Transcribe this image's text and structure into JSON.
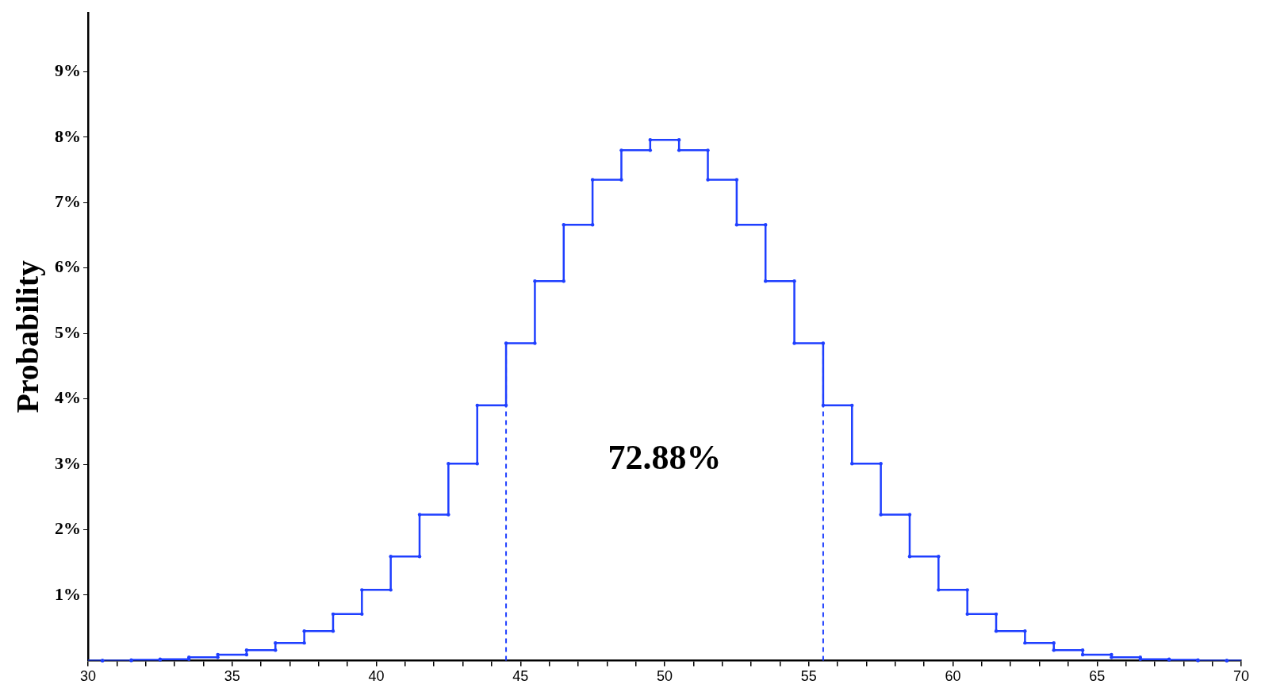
{
  "chart_data": {
    "type": "step",
    "ylabel": "Probability",
    "x": [
      30,
      31,
      32,
      33,
      34,
      35,
      36,
      37,
      38,
      39,
      40,
      41,
      42,
      43,
      44,
      45,
      46,
      47,
      48,
      49,
      50,
      51,
      52,
      53,
      54,
      55,
      56,
      57,
      58,
      59,
      60,
      61,
      62,
      63,
      64,
      65,
      66,
      67,
      68,
      69,
      70
    ],
    "series": [
      {
        "color": "#1f3fff",
        "values": [
          0.0,
          0.0,
          0.01,
          0.02,
          0.05,
          0.09,
          0.16,
          0.27,
          0.45,
          0.71,
          1.08,
          1.59,
          2.23,
          3.01,
          3.9,
          4.85,
          5.8,
          6.66,
          7.35,
          7.8,
          7.96,
          7.8,
          7.35,
          6.66,
          5.8,
          4.85,
          3.9,
          3.01,
          2.23,
          1.59,
          1.08,
          0.71,
          0.45,
          0.27,
          0.16,
          0.09,
          0.05,
          0.02,
          0.01,
          0.0,
          0.0
        ]
      }
    ],
    "xlim": [
      30,
      70
    ],
    "xticks": [
      30,
      {
        "value": 31,
        "label": null
      },
      {
        "value": 32,
        "label": null
      },
      {
        "value": 33,
        "label": null
      },
      {
        "value": 34,
        "label": null
      },
      35,
      {
        "value": 36,
        "label": null
      },
      {
        "value": 37,
        "label": null
      },
      {
        "value": 38,
        "label": null
      },
      {
        "value": 39,
        "label": null
      },
      40,
      {
        "value": 41,
        "label": null
      },
      {
        "value": 42,
        "label": null
      },
      {
        "value": 43,
        "label": null
      },
      {
        "value": 44,
        "label": null
      },
      45,
      {
        "value": 46,
        "label": null
      },
      {
        "value": 47,
        "label": null
      },
      {
        "value": 48,
        "label": null
      },
      {
        "value": 49,
        "label": null
      },
      50,
      {
        "value": 51,
        "label": null
      },
      {
        "value": 52,
        "label": null
      },
      {
        "value": 53,
        "label": null
      },
      {
        "value": 54,
        "label": null
      },
      55,
      {
        "value": 56,
        "label": null
      },
      {
        "value": 57,
        "label": null
      },
      {
        "value": 58,
        "label": null
      },
      {
        "value": 59,
        "label": null
      },
      60,
      {
        "value": 61,
        "label": null
      },
      {
        "value": 62,
        "label": null
      },
      {
        "value": 63,
        "label": null
      },
      {
        "value": 64,
        "label": null
      },
      65,
      {
        "value": 66,
        "label": null
      },
      {
        "value": 67,
        "label": null
      },
      {
        "value": 68,
        "label": null
      },
      {
        "value": 69,
        "label": null
      },
      70
    ],
    "ylim": [
      0,
      9.9
    ],
    "yticks": [
      {
        "value": 1,
        "label": "1%"
      },
      {
        "value": 2,
        "label": "2%"
      },
      {
        "value": 3,
        "label": "3%"
      },
      {
        "value": 4,
        "label": "4%"
      },
      {
        "value": 5,
        "label": "5%"
      },
      {
        "value": 6,
        "label": "6%"
      },
      {
        "value": 7,
        "label": "7%"
      },
      {
        "value": 8,
        "label": "8%"
      },
      {
        "value": 9,
        "label": "9%"
      }
    ],
    "ref_lines": [
      {
        "axis": "x",
        "value": 44.5,
        "color": "#1f3fff",
        "line_style": "dashed"
      },
      {
        "axis": "x",
        "value": 55.5,
        "color": "#1f3fff",
        "line_style": "dashed"
      }
    ],
    "annotations": [
      "72.88%"
    ],
    "line_style": "solid",
    "grid": false,
    "legend": false
  }
}
